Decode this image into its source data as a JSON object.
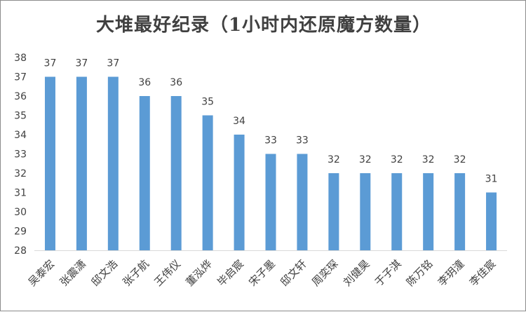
{
  "chart_data": {
    "type": "bar",
    "title": "大堆最好纪录（1小时内还原魔方数量）",
    "categories": [
      "吴泰宏",
      "张震潇",
      "邸文浩",
      "张子航",
      "王伟仪",
      "董泓烨",
      "毕启宸",
      "宋子墨",
      "邸文轩",
      "周奕琛",
      "刘健昊",
      "于子淇",
      "陈万铭",
      "李玥潼",
      "李佳宸"
    ],
    "values": [
      37,
      37,
      37,
      36,
      36,
      35,
      34,
      33,
      33,
      32,
      32,
      32,
      32,
      32,
      31
    ],
    "ylim": [
      28,
      38
    ],
    "yticks": [
      28,
      29,
      30,
      31,
      32,
      33,
      34,
      35,
      36,
      37,
      38
    ],
    "grid": false,
    "data_labels": true,
    "bar_color": "#5b9bd5",
    "axis_color": "#d9d9d9",
    "text_color": "#404040"
  }
}
